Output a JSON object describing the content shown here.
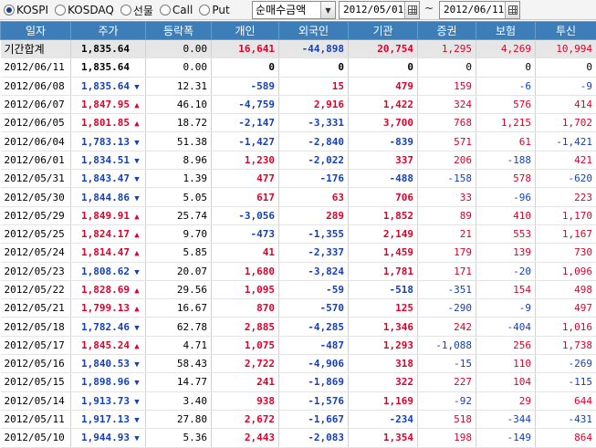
{
  "toolbar": {
    "market_options": [
      {
        "label": "KOSPI",
        "checked": true
      },
      {
        "label": "KOSDAQ",
        "checked": false
      },
      {
        "label": "선물",
        "checked": false
      },
      {
        "label": "Call",
        "checked": false
      },
      {
        "label": "Put",
        "checked": false
      }
    ],
    "type_select": "순매수금액",
    "date_from": "2012/05/01",
    "range_separator": "~",
    "date_to": "2012/06/11"
  },
  "table": {
    "headers": [
      "일자",
      "주가",
      "등락폭",
      "개인",
      "외국인",
      "기관",
      "증권",
      "보험",
      "투신"
    ],
    "rows": [
      {
        "date": "기간합계",
        "price": "1,835.64",
        "dir": "none",
        "change": "0.00",
        "indiv": "16,641",
        "foreign": "-44,898",
        "inst": "20,754",
        "sec": "1,295",
        "ins": "4,269",
        "trust": "10,994"
      },
      {
        "date": "2012/06/11",
        "price": "1,835.64",
        "dir": "none",
        "change": "0.00",
        "indiv": "0",
        "foreign": "0",
        "inst": "0",
        "sec": "0",
        "ins": "0",
        "trust": "0"
      },
      {
        "date": "2012/06/08",
        "price": "1,835.64",
        "dir": "down",
        "change": "12.31",
        "indiv": "-589",
        "foreign": "15",
        "inst": "479",
        "sec": "159",
        "ins": "-6",
        "trust": "-9"
      },
      {
        "date": "2012/06/07",
        "price": "1,847.95",
        "dir": "up",
        "change": "46.10",
        "indiv": "-4,759",
        "foreign": "2,916",
        "inst": "1,422",
        "sec": "324",
        "ins": "576",
        "trust": "414"
      },
      {
        "date": "2012/06/05",
        "price": "1,801.85",
        "dir": "up",
        "change": "18.72",
        "indiv": "-2,147",
        "foreign": "-3,331",
        "inst": "3,700",
        "sec": "768",
        "ins": "1,215",
        "trust": "1,702"
      },
      {
        "date": "2012/06/04",
        "price": "1,783.13",
        "dir": "down",
        "change": "51.38",
        "indiv": "-1,427",
        "foreign": "-2,840",
        "inst": "-839",
        "sec": "571",
        "ins": "61",
        "trust": "-1,421"
      },
      {
        "date": "2012/06/01",
        "price": "1,834.51",
        "dir": "down",
        "change": "8.96",
        "indiv": "1,230",
        "foreign": "-2,022",
        "inst": "337",
        "sec": "206",
        "ins": "-188",
        "trust": "421"
      },
      {
        "date": "2012/05/31",
        "price": "1,843.47",
        "dir": "down",
        "change": "1.39",
        "indiv": "477",
        "foreign": "-176",
        "inst": "-488",
        "sec": "-158",
        "ins": "578",
        "trust": "-620"
      },
      {
        "date": "2012/05/30",
        "price": "1,844.86",
        "dir": "down",
        "change": "5.05",
        "indiv": "617",
        "foreign": "63",
        "inst": "706",
        "sec": "33",
        "ins": "-96",
        "trust": "223"
      },
      {
        "date": "2012/05/29",
        "price": "1,849.91",
        "dir": "up",
        "change": "25.74",
        "indiv": "-3,056",
        "foreign": "289",
        "inst": "1,852",
        "sec": "89",
        "ins": "410",
        "trust": "1,170"
      },
      {
        "date": "2012/05/25",
        "price": "1,824.17",
        "dir": "up",
        "change": "9.70",
        "indiv": "-473",
        "foreign": "-1,355",
        "inst": "2,149",
        "sec": "21",
        "ins": "553",
        "trust": "1,167"
      },
      {
        "date": "2012/05/24",
        "price": "1,814.47",
        "dir": "up",
        "change": "5.85",
        "indiv": "41",
        "foreign": "-2,337",
        "inst": "1,459",
        "sec": "179",
        "ins": "139",
        "trust": "730"
      },
      {
        "date": "2012/05/23",
        "price": "1,808.62",
        "dir": "down",
        "change": "20.07",
        "indiv": "1,680",
        "foreign": "-3,824",
        "inst": "1,781",
        "sec": "171",
        "ins": "-20",
        "trust": "1,096"
      },
      {
        "date": "2012/05/22",
        "price": "1,828.69",
        "dir": "up",
        "change": "29.56",
        "indiv": "1,095",
        "foreign": "-59",
        "inst": "-518",
        "sec": "-351",
        "ins": "154",
        "trust": "498"
      },
      {
        "date": "2012/05/21",
        "price": "1,799.13",
        "dir": "up",
        "change": "16.67",
        "indiv": "870",
        "foreign": "-570",
        "inst": "125",
        "sec": "-290",
        "ins": "-9",
        "trust": "497"
      },
      {
        "date": "2012/05/18",
        "price": "1,782.46",
        "dir": "down",
        "change": "62.78",
        "indiv": "2,885",
        "foreign": "-4,285",
        "inst": "1,346",
        "sec": "242",
        "ins": "-404",
        "trust": "1,016"
      },
      {
        "date": "2012/05/17",
        "price": "1,845.24",
        "dir": "up",
        "change": "4.71",
        "indiv": "1,075",
        "foreign": "-487",
        "inst": "1,293",
        "sec": "-1,088",
        "ins": "256",
        "trust": "1,738"
      },
      {
        "date": "2012/05/16",
        "price": "1,840.53",
        "dir": "down",
        "change": "58.43",
        "indiv": "2,722",
        "foreign": "-4,906",
        "inst": "318",
        "sec": "-15",
        "ins": "110",
        "trust": "-269"
      },
      {
        "date": "2012/05/15",
        "price": "1,898.96",
        "dir": "down",
        "change": "14.77",
        "indiv": "241",
        "foreign": "-1,869",
        "inst": "322",
        "sec": "227",
        "ins": "104",
        "trust": "-115"
      },
      {
        "date": "2012/05/14",
        "price": "1,913.73",
        "dir": "down",
        "change": "3.40",
        "indiv": "938",
        "foreign": "-1,576",
        "inst": "1,169",
        "sec": "-92",
        "ins": "29",
        "trust": "644"
      },
      {
        "date": "2012/05/11",
        "price": "1,917.13",
        "dir": "down",
        "change": "27.80",
        "indiv": "2,672",
        "foreign": "-1,667",
        "inst": "-234",
        "sec": "518",
        "ins": "-344",
        "trust": "-431"
      },
      {
        "date": "2012/05/10",
        "price": "1,944.93",
        "dir": "down",
        "change": "5.36",
        "indiv": "2,443",
        "foreign": "-2,083",
        "inst": "1,354",
        "sec": "198",
        "ins": "-149",
        "trust": "864"
      }
    ]
  },
  "icons": {
    "dropdown": "chevron-down-icon",
    "calendar": "calendar-icon",
    "up": "triangle-up-icon",
    "down": "triangle-down-icon"
  },
  "colors": {
    "header_bg": "#3d7eb8",
    "up": "#e0002a",
    "down": "#1540b8",
    "total_row_bg": "#e6e6e6"
  }
}
